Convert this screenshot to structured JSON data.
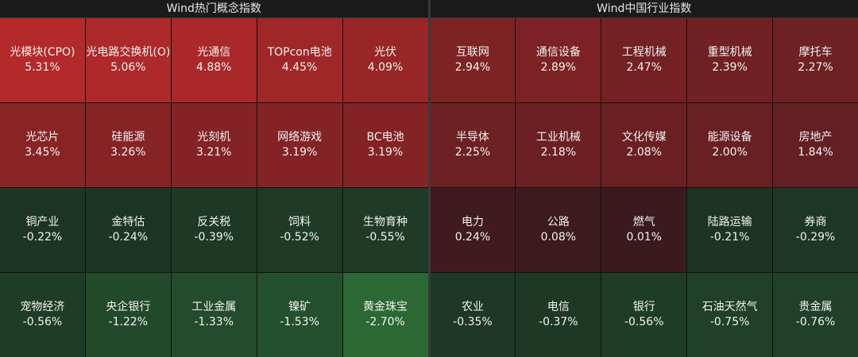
{
  "panels": [
    {
      "title": "Wind热门概念指数",
      "tiles": [
        {
          "label": "光模块(CPO)",
          "change": "5.31%"
        },
        {
          "label": "光电路交换机(O)",
          "change": "5.06%"
        },
        {
          "label": "光通信",
          "change": "4.88%"
        },
        {
          "label": "TOPcon电池",
          "change": "4.45%"
        },
        {
          "label": "光伏",
          "change": "4.09%"
        },
        {
          "label": "光芯片",
          "change": "3.45%"
        },
        {
          "label": "硅能源",
          "change": "3.26%"
        },
        {
          "label": "光刻机",
          "change": "3.21%"
        },
        {
          "label": "网络游戏",
          "change": "3.19%"
        },
        {
          "label": "BC电池",
          "change": "3.19%"
        },
        {
          "label": "铜产业",
          "change": "-0.22%"
        },
        {
          "label": "金特估",
          "change": "-0.24%"
        },
        {
          "label": "反关税",
          "change": "-0.39%"
        },
        {
          "label": "饲料",
          "change": "-0.52%"
        },
        {
          "label": "生物育种",
          "change": "-0.55%"
        },
        {
          "label": "宠物经济",
          "change": "-0.56%"
        },
        {
          "label": "央企银行",
          "change": "-1.22%"
        },
        {
          "label": "工业金属",
          "change": "-1.33%"
        },
        {
          "label": "镍矿",
          "change": "-1.53%"
        },
        {
          "label": "黄金珠宝",
          "change": "-2.70%"
        }
      ]
    },
    {
      "title": "Wind中国行业指数",
      "tiles": [
        {
          "label": "互联网",
          "change": "2.94%"
        },
        {
          "label": "通信设备",
          "change": "2.89%"
        },
        {
          "label": "工程机械",
          "change": "2.47%"
        },
        {
          "label": "重型机械",
          "change": "2.39%"
        },
        {
          "label": "摩托车",
          "change": "2.27%"
        },
        {
          "label": "半导体",
          "change": "2.25%"
        },
        {
          "label": "工业机械",
          "change": "2.18%"
        },
        {
          "label": "文化传媒",
          "change": "2.08%"
        },
        {
          "label": "能源设备",
          "change": "2.00%"
        },
        {
          "label": "房地产",
          "change": "1.84%"
        },
        {
          "label": "电力",
          "change": "0.24%"
        },
        {
          "label": "公路",
          "change": "0.08%"
        },
        {
          "label": "燃气",
          "change": "0.01%"
        },
        {
          "label": "陆路运输",
          "change": "-0.21%"
        },
        {
          "label": "券商",
          "change": "-0.29%"
        },
        {
          "label": "农业",
          "change": "-0.35%"
        },
        {
          "label": "电信",
          "change": "-0.37%"
        },
        {
          "label": "银行",
          "change": "-0.56%"
        },
        {
          "label": "石油天然气",
          "change": "-0.75%"
        },
        {
          "label": "贵金属",
          "change": "-0.76%"
        }
      ]
    }
  ]
}
